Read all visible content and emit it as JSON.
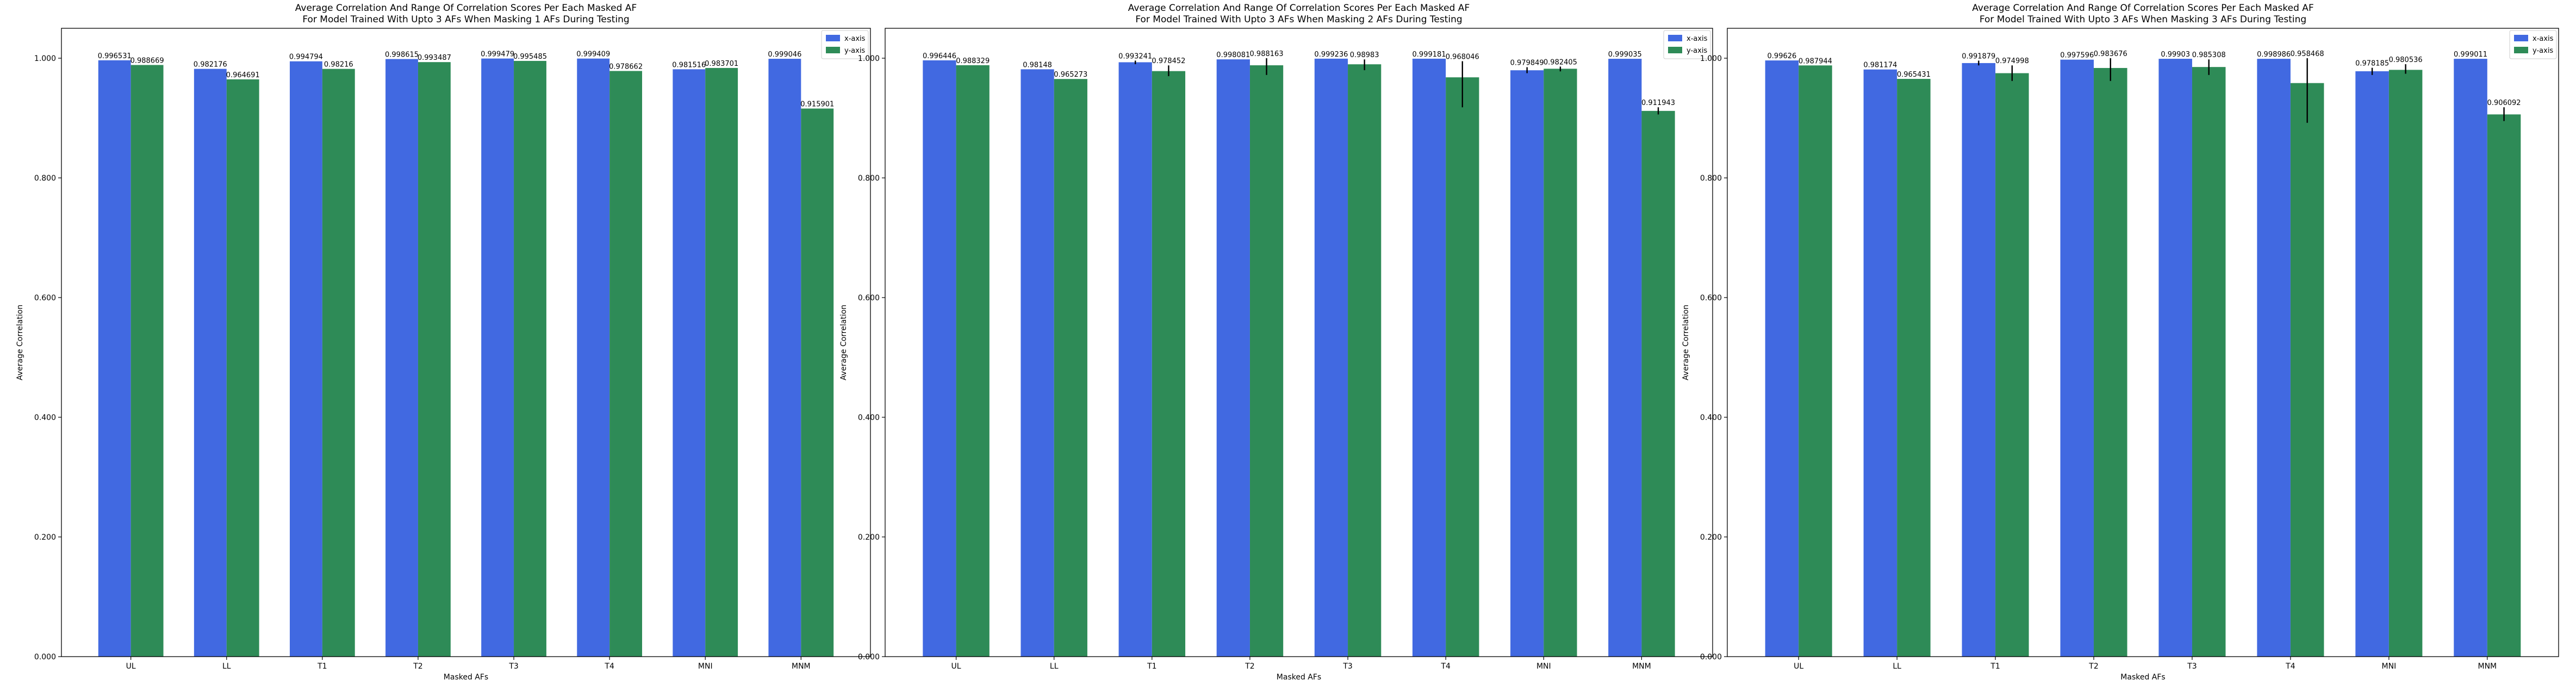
{
  "chart_data": [
    {
      "type": "bar",
      "title": "Average Correlation And Range Of Correlation Scores Per Each Masked AF\nFor Model Trained With Upto 3 AFs When Masking 1 AFs During Testing",
      "xlabel": "Masked AFs",
      "ylabel": "Average Correlation",
      "ylim": [
        0,
        1.05
      ],
      "yticks": [
        "0.000",
        "0.200",
        "0.400",
        "0.600",
        "0.800",
        "1.000"
      ],
      "legend_position": "top-right",
      "categories": [
        "UL",
        "LL",
        "T1",
        "T2",
        "T3",
        "T4",
        "MNI",
        "MNM"
      ],
      "series": [
        {
          "name": "x-axis",
          "color": "#4169e1",
          "values": [
            0.996531,
            0.982176,
            0.994794,
            0.998615,
            0.999479,
            0.999409,
            0.981516,
            0.999046
          ],
          "labels": [
            "0.996531",
            "0.982176",
            "0.994794",
            "0.998615",
            "0.999479",
            "0.999409",
            "0.981516",
            "0.999046"
          ],
          "err_low": [
            0.996531,
            0.982176,
            0.994794,
            0.998615,
            0.999479,
            0.999409,
            0.981516,
            0.999046
          ],
          "err_high": [
            0.996531,
            0.982176,
            0.994794,
            0.998615,
            0.999479,
            0.999409,
            0.981516,
            0.999046
          ]
        },
        {
          "name": "y-axis",
          "color": "#2e8b57",
          "values": [
            0.988669,
            0.964691,
            0.98216,
            0.993487,
            0.995485,
            0.978662,
            0.983701,
            0.915901
          ],
          "labels": [
            "0.988669",
            "0.964691",
            "0.98216",
            "0.993487",
            "0.995485",
            "0.978662",
            "0.983701",
            "0.915901"
          ],
          "err_low": [
            0.988669,
            0.964691,
            0.98216,
            0.993487,
            0.995485,
            0.978662,
            0.983701,
            0.915901
          ],
          "err_high": [
            0.988669,
            0.964691,
            0.98216,
            0.993487,
            0.995485,
            0.978662,
            0.983701,
            0.915901
          ]
        }
      ]
    },
    {
      "type": "bar",
      "title": "Average Correlation And Range Of Correlation Scores Per Each Masked AF\nFor Model Trained With Upto 3 AFs When Masking 2 AFs During Testing",
      "xlabel": "Masked AFs",
      "ylabel": "Average Correlation",
      "ylim": [
        0,
        1.05
      ],
      "yticks": [
        "0.000",
        "0.200",
        "0.400",
        "0.600",
        "0.800",
        "1.000"
      ],
      "legend_position": "top-right",
      "categories": [
        "UL",
        "LL",
        "T1",
        "T2",
        "T3",
        "T4",
        "MNI",
        "MNM"
      ],
      "series": [
        {
          "name": "x-axis",
          "color": "#4169e1",
          "values": [
            0.996446,
            0.98148,
            0.993241,
            0.998081,
            0.999236,
            0.999181,
            0.979849,
            0.999035
          ],
          "labels": [
            "0.996446",
            "0.98148",
            "0.993241",
            "0.998081",
            "0.999236",
            "0.999181",
            "0.979849",
            "0.999035"
          ],
          "err_low": [
            0.996446,
            0.98148,
            0.99,
            0.998081,
            0.999236,
            0.999181,
            0.975,
            0.999035
          ],
          "err_high": [
            0.996446,
            0.98148,
            0.996,
            0.998081,
            0.999236,
            0.999181,
            0.985,
            0.999035
          ]
        },
        {
          "name": "y-axis",
          "color": "#2e8b57",
          "values": [
            0.988329,
            0.965273,
            0.978452,
            0.988163,
            0.98983,
            0.968046,
            0.982405,
            0.911943
          ],
          "labels": [
            "0.988329",
            "0.965273",
            "0.978452",
            "0.988163",
            "0.98983",
            "0.968046",
            "0.982405",
            "0.911943"
          ],
          "err_low": [
            0.988329,
            0.965273,
            0.97,
            0.972,
            0.98,
            0.918,
            0.978,
            0.906
          ],
          "err_high": [
            0.988329,
            0.965273,
            0.988,
            1.0,
            0.998,
            0.995,
            0.986,
            0.918
          ]
        }
      ]
    },
    {
      "type": "bar",
      "title": "Average Correlation And Range Of Correlation Scores Per Each Masked AF\nFor Model Trained With Upto 3 AFs When Masking 3 AFs During Testing",
      "xlabel": "Masked AFs",
      "ylabel": "Average Correlation",
      "ylim": [
        0,
        1.05
      ],
      "yticks": [
        "0.000",
        "0.200",
        "0.400",
        "0.600",
        "0.800",
        "1.000"
      ],
      "legend_position": "top-right",
      "categories": [
        "UL",
        "LL",
        "T1",
        "T2",
        "T3",
        "T4",
        "MNI",
        "MNM"
      ],
      "series": [
        {
          "name": "x-axis",
          "color": "#4169e1",
          "values": [
            0.99626,
            0.981174,
            0.991879,
            0.997596,
            0.99903,
            0.998986,
            0.978185,
            0.999011
          ],
          "labels": [
            "0.99626",
            "0.981174",
            "0.991879",
            "0.997596",
            "0.99903",
            "0.998986",
            "0.978185",
            "0.999011"
          ],
          "err_low": [
            0.99626,
            0.981174,
            0.988,
            0.997596,
            0.99903,
            0.998986,
            0.972,
            0.999011
          ],
          "err_high": [
            0.99626,
            0.981174,
            0.996,
            0.997596,
            0.99903,
            0.998986,
            0.984,
            0.999011
          ]
        },
        {
          "name": "y-axis",
          "color": "#2e8b57",
          "values": [
            0.987944,
            0.965431,
            0.974998,
            0.983676,
            0.985308,
            0.958468,
            0.980536,
            0.906092
          ],
          "labels": [
            "0.987944",
            "0.965431",
            "0.974998",
            "0.983676",
            "0.985308",
            "0.958468",
            "0.980536",
            "0.906092"
          ],
          "err_low": [
            0.987944,
            0.965431,
            0.962,
            0.962,
            0.972,
            0.892,
            0.974,
            0.895
          ],
          "err_high": [
            0.987944,
            0.965431,
            0.988,
            1.0,
            0.998,
            1.0,
            0.99,
            0.918
          ]
        }
      ]
    }
  ]
}
